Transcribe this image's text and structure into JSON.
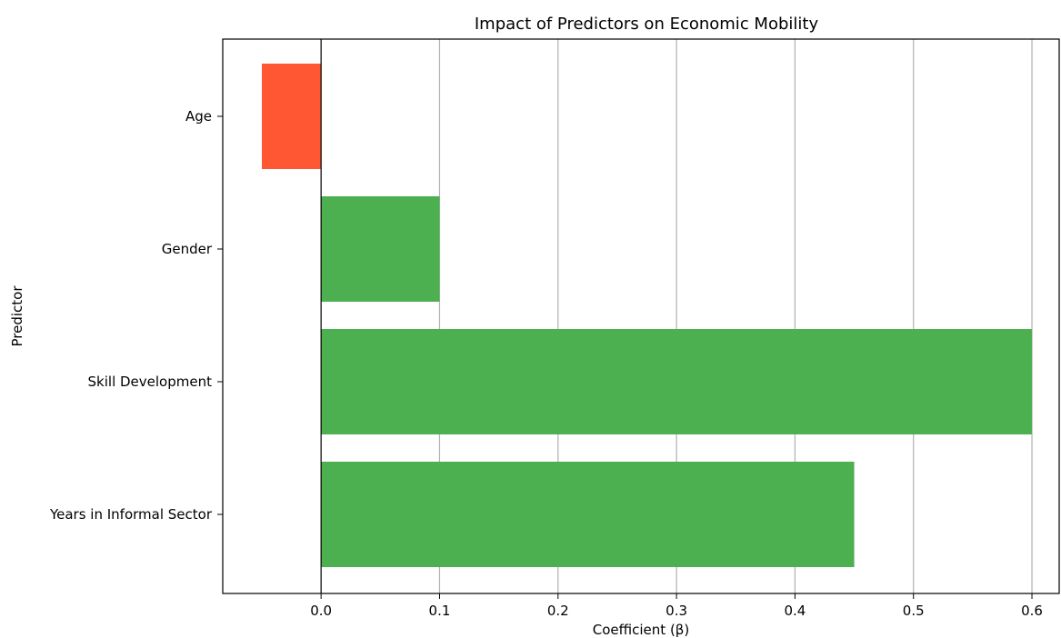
{
  "chart_data": {
    "type": "bar",
    "orientation": "horizontal",
    "title": "Impact of Predictors on Economic Mobility",
    "xlabel": "Coefficient (β)",
    "ylabel": "Predictor",
    "categories": [
      "Years in Informal Sector",
      "Skill Development",
      "Gender",
      "Age"
    ],
    "values": [
      0.45,
      0.6,
      0.1,
      -0.05
    ],
    "xlim": [
      -0.083,
      0.623
    ],
    "xticks": [
      0.0,
      0.1,
      0.2,
      0.3,
      0.4,
      0.5,
      0.6
    ],
    "xtick_labels": [
      "0.0",
      "0.1",
      "0.2",
      "0.3",
      "0.4",
      "0.5",
      "0.6"
    ],
    "grid": {
      "x": true,
      "y": false
    },
    "zero_line": true,
    "colors": {
      "positive": "#4caf50",
      "negative": "#ff5733",
      "grid": "#b0b0b0",
      "axis": "#000000"
    }
  }
}
